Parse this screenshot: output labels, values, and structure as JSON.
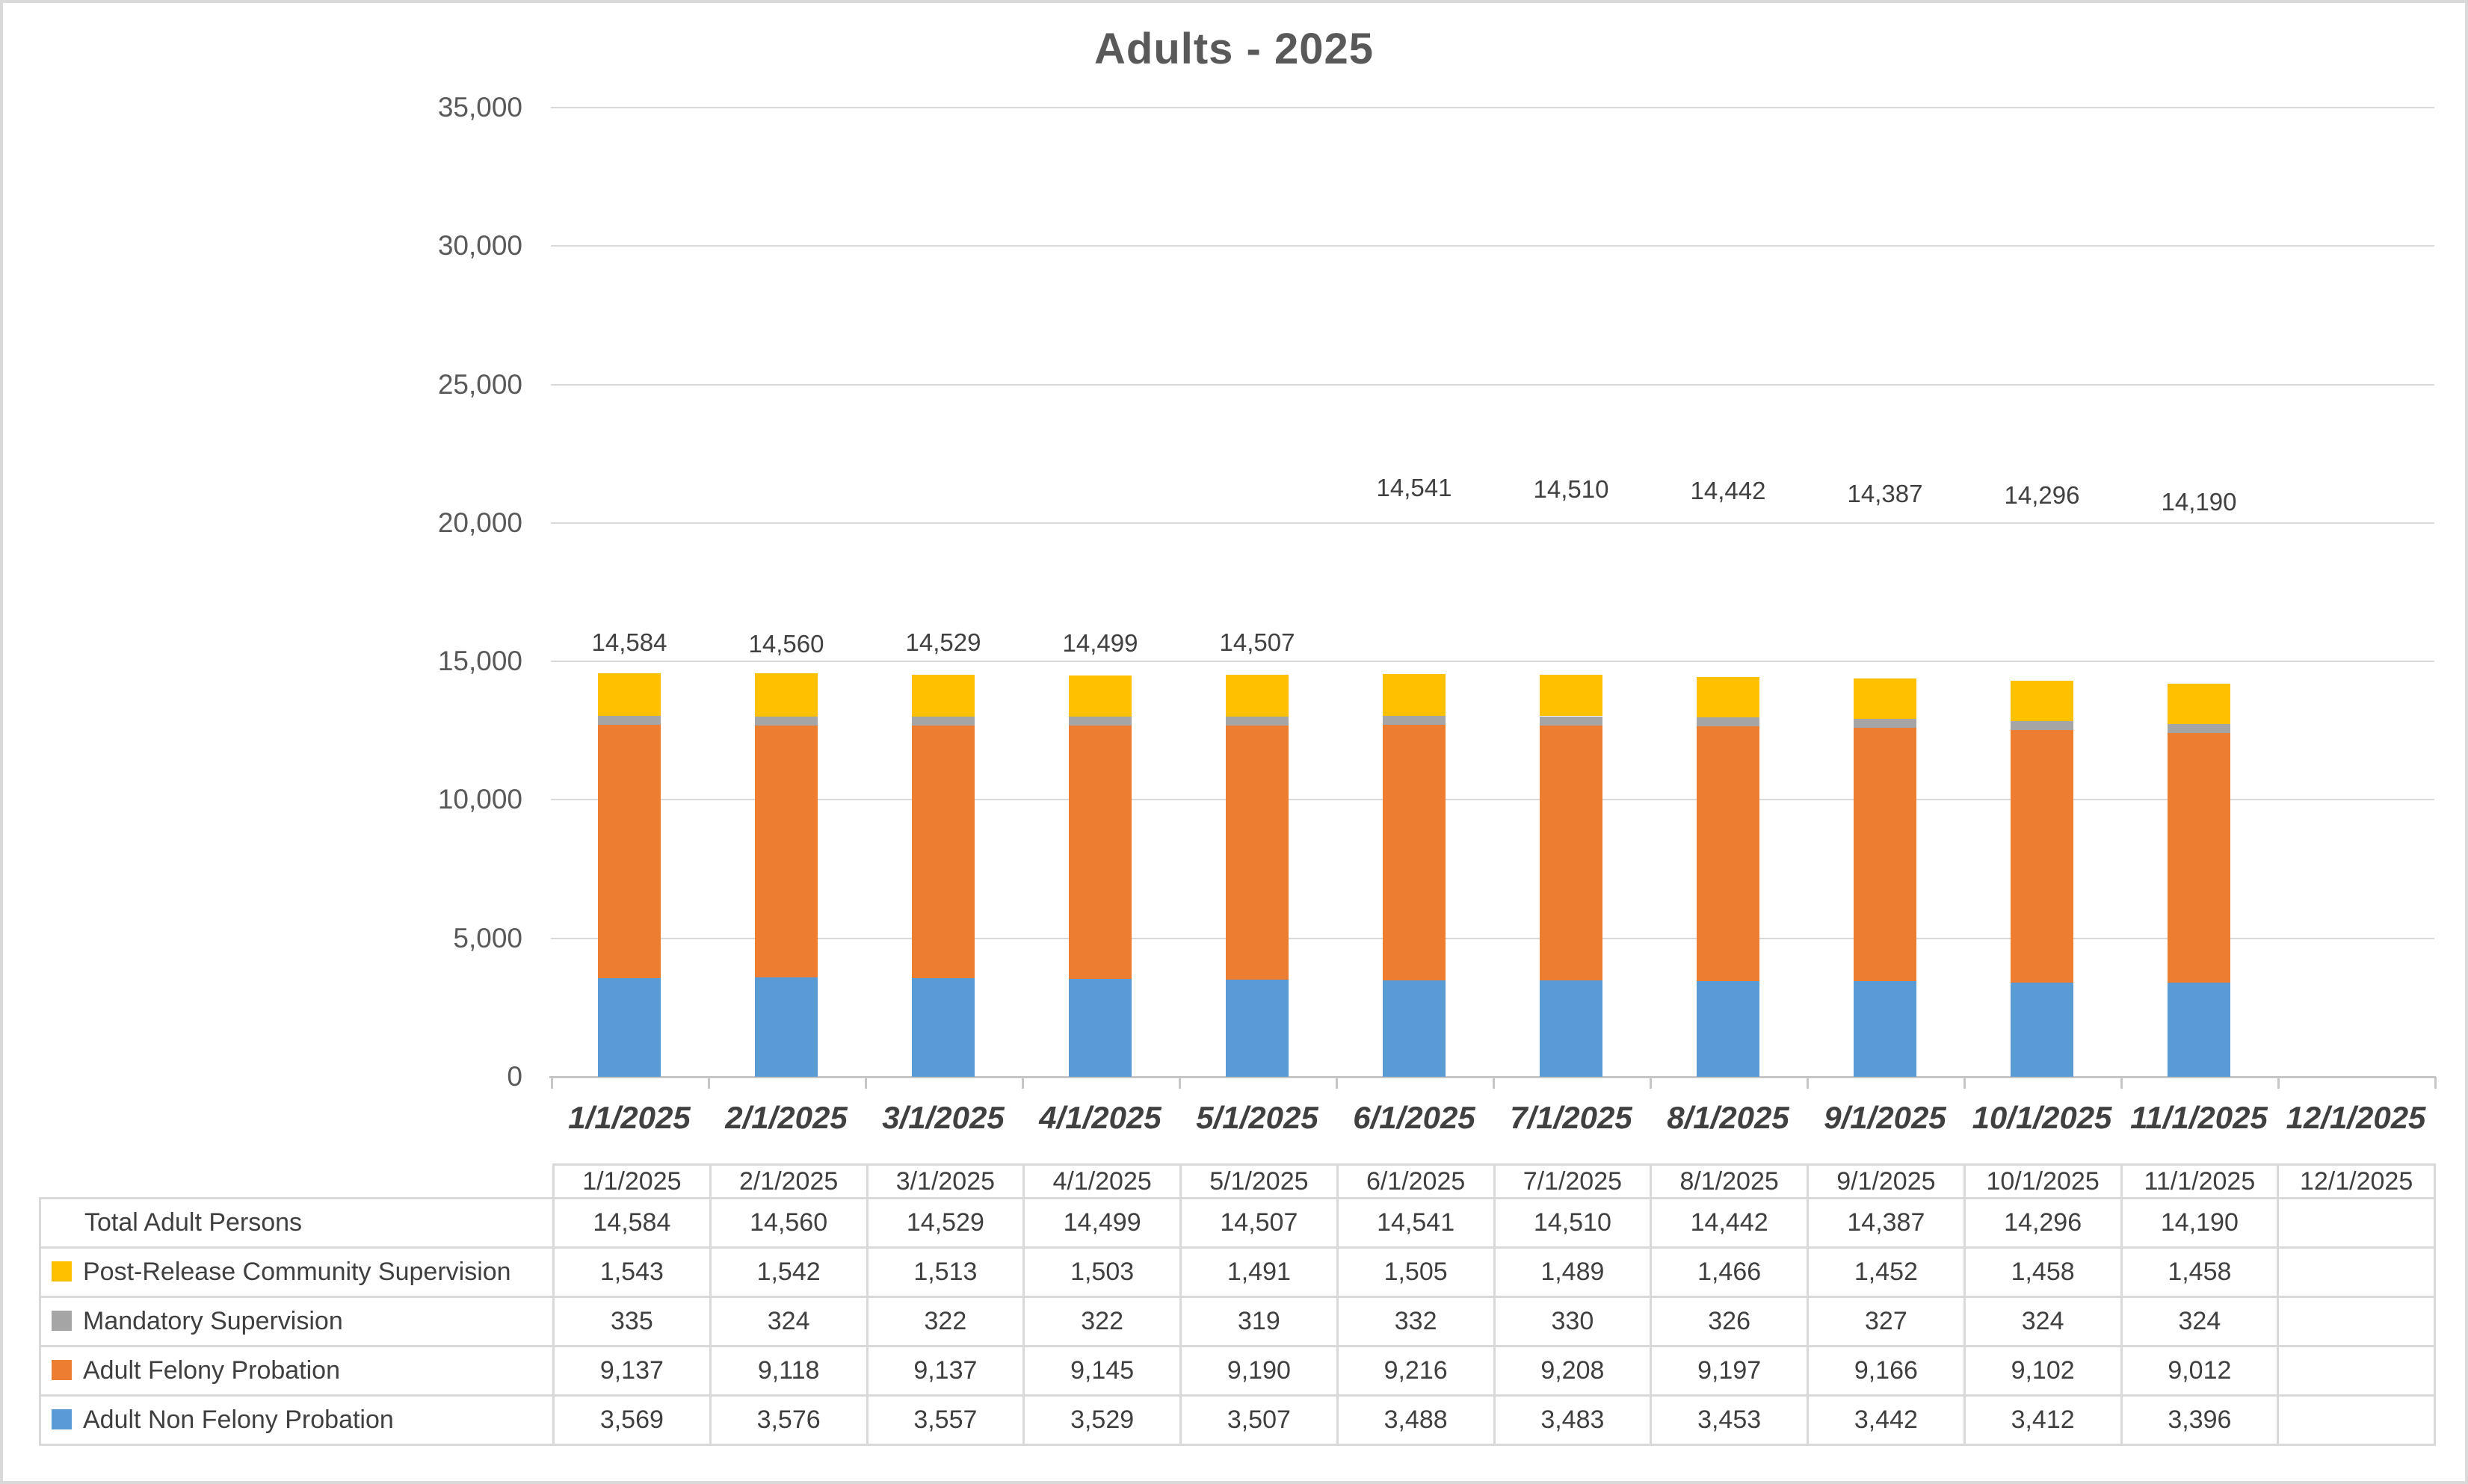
{
  "title": "Adults - 2025",
  "colors": {
    "post_release_community_supervision": "#FFC000",
    "mandatory_supervision": "#A5A5A5",
    "adult_felony_probation": "#ED7D31",
    "adult_non_felony_probation": "#5B9BD5",
    "axis_text": "#595959",
    "label_text": "#404040",
    "gridline": "#D9D9D9"
  },
  "chart_data": {
    "type": "bar",
    "subtype": "stacked",
    "title": "Adults - 2025",
    "categories": [
      "1/1/2025",
      "2/1/2025",
      "3/1/2025",
      "4/1/2025",
      "5/1/2025",
      "6/1/2025",
      "7/1/2025",
      "8/1/2025",
      "9/1/2025",
      "10/1/2025",
      "11/1/2025",
      "12/1/2025"
    ],
    "series": [
      {
        "name": "Adult Non Felony Probation",
        "color": "#5B9BD5",
        "values": [
          3569,
          3576,
          3557,
          3529,
          3507,
          3488,
          3483,
          3453,
          3442,
          3412,
          3396
        ]
      },
      {
        "name": "Adult Felony Probation",
        "color": "#ED7D31",
        "values": [
          9137,
          9118,
          9137,
          9145,
          9190,
          9216,
          9208,
          9197,
          9166,
          9102,
          9012
        ]
      },
      {
        "name": "Mandatory Supervision",
        "color": "#A5A5A5",
        "values": [
          335,
          324,
          322,
          322,
          319,
          332,
          330,
          326,
          327,
          324,
          324
        ]
      },
      {
        "name": "Post-Release Community Supervision",
        "color": "#FFC000",
        "values": [
          1543,
          1542,
          1513,
          1503,
          1491,
          1505,
          1489,
          1466,
          1452,
          1458,
          1458
        ]
      }
    ],
    "totals": [
      14584,
      14560,
      14529,
      14499,
      14507,
      14541,
      14510,
      14442,
      14387,
      14296,
      14190
    ],
    "ylim": [
      0,
      35000
    ],
    "ytick_interval": 5000,
    "ytick_labels": [
      "0",
      "5,000",
      "10,000",
      "15,000",
      "20,000",
      "25,000",
      "30,000",
      "35,000"
    ],
    "grid": true,
    "legend_position": "table-below",
    "data_labels": "total above each bar"
  },
  "table": {
    "header_dates": [
      "1/1/2025",
      "2/1/2025",
      "3/1/2025",
      "4/1/2025",
      "5/1/2025",
      "6/1/2025",
      "7/1/2025",
      "8/1/2025",
      "9/1/2025",
      "10/1/2025",
      "11/1/2025",
      "12/1/2025"
    ],
    "rows": [
      {
        "label": "Total Adult Persons",
        "swatch": null,
        "values": [
          "14,584",
          "14,560",
          "14,529",
          "14,499",
          "14,507",
          "14,541",
          "14,510",
          "14,442",
          "14,387",
          "14,296",
          "14,190",
          ""
        ]
      },
      {
        "label": "Post-Release Community Supervision",
        "swatch": "#FFC000",
        "values": [
          "1,543",
          "1,542",
          "1,513",
          "1,503",
          "1,491",
          "1,505",
          "1,489",
          "1,466",
          "1,452",
          "1,458",
          "1,458",
          ""
        ]
      },
      {
        "label": "Mandatory Supervision",
        "swatch": "#A5A5A5",
        "values": [
          "335",
          "324",
          "322",
          "322",
          "319",
          "332",
          "330",
          "326",
          "327",
          "324",
          "324",
          ""
        ]
      },
      {
        "label": "Adult Felony Probation",
        "swatch": "#ED7D31",
        "values": [
          "9,137",
          "9,118",
          "9,137",
          "9,145",
          "9,190",
          "9,216",
          "9,208",
          "9,197",
          "9,166",
          "9,102",
          "9,012",
          ""
        ]
      },
      {
        "label": "Adult Non Felony Probation",
        "swatch": "#5B9BD5",
        "values": [
          "3,569",
          "3,576",
          "3,557",
          "3,529",
          "3,507",
          "3,488",
          "3,483",
          "3,453",
          "3,442",
          "3,412",
          "3,396",
          ""
        ]
      }
    ]
  }
}
